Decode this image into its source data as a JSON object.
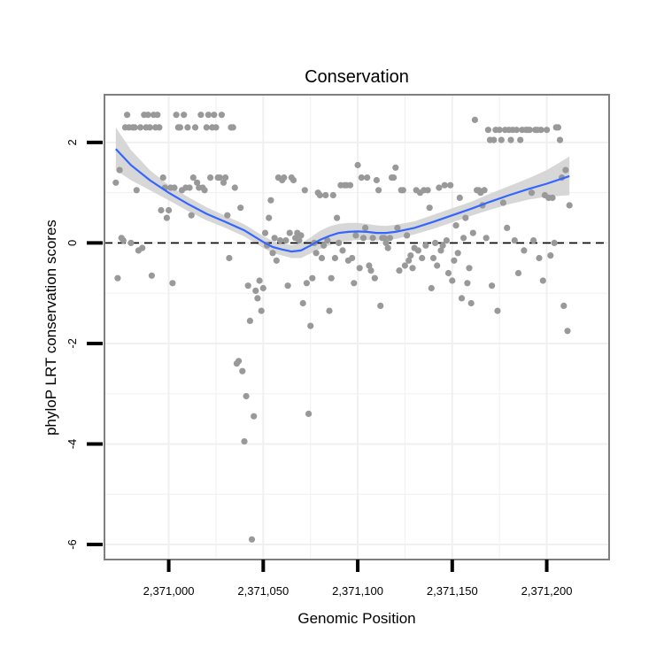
{
  "chart_data": {
    "type": "scatter",
    "title": "Conservation",
    "xlabel": "Genomic Position",
    "ylabel": "phyloP LRT conservation scores",
    "xlim": [
      2370966,
      2371233
    ],
    "ylim": [
      -6.3,
      2.95
    ],
    "x_ticks": [
      2371000,
      2371050,
      2371100,
      2371150,
      2371200
    ],
    "x_tick_labels": [
      "2,371,000",
      "2,371,050",
      "2,371,100",
      "2,371,150",
      "2,371,200"
    ],
    "y_ticks": [
      2,
      0,
      -2,
      -4,
      -6
    ],
    "y_tick_labels": [
      "2",
      "0",
      "-2",
      "-4",
      "-6"
    ],
    "reference_line": {
      "y": 0,
      "style": "dashed"
    },
    "grid": true,
    "colors": {
      "points": "#999999",
      "smooth": "#3366ff",
      "ribbon": "#d3d3d3",
      "panel_border": "#7f7f7f",
      "grid": "#f0f0f0"
    },
    "points": [
      [
        2370972,
        1.2
      ],
      [
        2370973,
        -0.7
      ],
      [
        2370974,
        1.45
      ],
      [
        2370975,
        0.1
      ],
      [
        2370976,
        0.05
      ],
      [
        2370977,
        2.3
      ],
      [
        2370978,
        2.55
      ],
      [
        2370979,
        2.3
      ],
      [
        2370980,
        0.0
      ],
      [
        2370981,
        2.3
      ],
      [
        2370982,
        2.3
      ],
      [
        2370983,
        1.05
      ],
      [
        2370984,
        -0.15
      ],
      [
        2370985,
        2.3
      ],
      [
        2370986,
        -0.1
      ],
      [
        2370987,
        2.55
      ],
      [
        2370988,
        2.3
      ],
      [
        2370989,
        2.55
      ],
      [
        2370990,
        2.3
      ],
      [
        2370991,
        -0.65
      ],
      [
        2370992,
        2.55
      ],
      [
        2370993,
        2.3
      ],
      [
        2370994,
        2.55
      ],
      [
        2370995,
        2.3
      ],
      [
        2370996,
        0.65
      ],
      [
        2370997,
        1.3
      ],
      [
        2370998,
        1.1
      ],
      [
        2370999,
        0.5
      ],
      [
        2371000,
        0.65
      ],
      [
        2371001,
        1.1
      ],
      [
        2371002,
        -0.8
      ],
      [
        2371003,
        1.1
      ],
      [
        2371004,
        2.55
      ],
      [
        2371005,
        2.3
      ],
      [
        2371006,
        2.3
      ],
      [
        2371007,
        1.05
      ],
      [
        2371008,
        2.55
      ],
      [
        2371009,
        1.1
      ],
      [
        2371010,
        2.3
      ],
      [
        2371011,
        1.1
      ],
      [
        2371012,
        0.55
      ],
      [
        2371013,
        1.3
      ],
      [
        2371014,
        2.3
      ],
      [
        2371015,
        1.2
      ],
      [
        2371016,
        1.1
      ],
      [
        2371017,
        2.55
      ],
      [
        2371018,
        1.1
      ],
      [
        2371019,
        1.05
      ],
      [
        2371020,
        2.3
      ],
      [
        2371021,
        2.55
      ],
      [
        2371022,
        1.3
      ],
      [
        2371023,
        2.3
      ],
      [
        2371024,
        2.55
      ],
      [
        2371025,
        2.3
      ],
      [
        2371026,
        1.3
      ],
      [
        2371027,
        1.3
      ],
      [
        2371028,
        2.55
      ],
      [
        2371029,
        1.2
      ],
      [
        2371030,
        1.3
      ],
      [
        2371031,
        0.55
      ],
      [
        2371032,
        -0.3
      ],
      [
        2371033,
        2.3
      ],
      [
        2371034,
        2.3
      ],
      [
        2371035,
        1.1
      ],
      [
        2371036,
        -2.4
      ],
      [
        2371037,
        -2.35
      ],
      [
        2371038,
        0.7
      ],
      [
        2371039,
        -2.55
      ],
      [
        2371040,
        -3.95
      ],
      [
        2371041,
        -3.05
      ],
      [
        2371042,
        -0.85
      ],
      [
        2371043,
        -1.55
      ],
      [
        2371044,
        -5.9
      ],
      [
        2371045,
        -3.45
      ],
      [
        2371046,
        -0.95
      ],
      [
        2371047,
        -1.1
      ],
      [
        2371048,
        -0.75
      ],
      [
        2371049,
        -1.35
      ],
      [
        2371050,
        -0.9
      ],
      [
        2371051,
        0.2
      ],
      [
        2371052,
        -0.05
      ],
      [
        2371053,
        0.5
      ],
      [
        2371054,
        0.85
      ],
      [
        2371055,
        -0.2
      ],
      [
        2371056,
        0.1
      ],
      [
        2371057,
        -0.35
      ],
      [
        2371058,
        1.3
      ],
      [
        2371059,
        0.05
      ],
      [
        2371060,
        1.25
      ],
      [
        2371061,
        1.3
      ],
      [
        2371062,
        0.05
      ],
      [
        2371063,
        -0.85
      ],
      [
        2371064,
        0.2
      ],
      [
        2371065,
        1.3
      ],
      [
        2371066,
        1.25
      ],
      [
        2371067,
        0.1
      ],
      [
        2371068,
        0.2
      ],
      [
        2371069,
        0.05
      ],
      [
        2371070,
        0.15
      ],
      [
        2371071,
        -1.2
      ],
      [
        2371072,
        1.05
      ],
      [
        2371073,
        -0.8
      ],
      [
        2371074,
        -3.4
      ],
      [
        2371075,
        -1.65
      ],
      [
        2371076,
        -0.7
      ],
      [
        2371077,
        0.0
      ],
      [
        2371078,
        -0.2
      ],
      [
        2371079,
        1.0
      ],
      [
        2371080,
        0.95
      ],
      [
        2371081,
        -0.3
      ],
      [
        2371082,
        -0.05
      ],
      [
        2371083,
        0.95
      ],
      [
        2371084,
        0.05
      ],
      [
        2371085,
        -1.35
      ],
      [
        2371086,
        -0.7
      ],
      [
        2371087,
        0.95
      ],
      [
        2371088,
        -0.3
      ],
      [
        2371089,
        0.5
      ],
      [
        2371090,
        0.0
      ],
      [
        2371091,
        1.15
      ],
      [
        2371092,
        -0.15
      ],
      [
        2371093,
        1.15
      ],
      [
        2371094,
        1.15
      ],
      [
        2371095,
        -0.35
      ],
      [
        2371096,
        1.15
      ],
      [
        2371097,
        -0.3
      ],
      [
        2371098,
        -0.8
      ],
      [
        2371099,
        0.15
      ],
      [
        2371100,
        1.55
      ],
      [
        2371101,
        -0.5
      ],
      [
        2371102,
        1.3
      ],
      [
        2371103,
        0.1
      ],
      [
        2371104,
        0.3
      ],
      [
        2371105,
        1.3
      ],
      [
        2371106,
        -0.45
      ],
      [
        2371107,
        -0.55
      ],
      [
        2371108,
        0.1
      ],
      [
        2371109,
        -0.7
      ],
      [
        2371110,
        1.25
      ],
      [
        2371111,
        1.05
      ],
      [
        2371112,
        -1.25
      ],
      [
        2371113,
        0.1
      ],
      [
        2371114,
        0.1
      ],
      [
        2371115,
        0.0
      ],
      [
        2371116,
        -0.1
      ],
      [
        2371117,
        0.1
      ],
      [
        2371118,
        1.3
      ],
      [
        2371119,
        1.3
      ],
      [
        2371120,
        1.5
      ],
      [
        2371121,
        0.3
      ],
      [
        2371122,
        -0.55
      ],
      [
        2371123,
        1.05
      ],
      [
        2371124,
        1.05
      ],
      [
        2371125,
        -0.45
      ],
      [
        2371126,
        0.15
      ],
      [
        2371127,
        -0.35
      ],
      [
        2371128,
        -0.25
      ],
      [
        2371129,
        -0.5
      ],
      [
        2371130,
        -0.1
      ],
      [
        2371131,
        1.05
      ],
      [
        2371132,
        -0.15
      ],
      [
        2371133,
        1.0
      ],
      [
        2371134,
        -0.3
      ],
      [
        2371135,
        1.05
      ],
      [
        2371136,
        -0.05
      ],
      [
        2371137,
        1.05
      ],
      [
        2371138,
        0.7
      ],
      [
        2371139,
        -0.9
      ],
      [
        2371140,
        -0.3
      ],
      [
        2371141,
        0.0
      ],
      [
        2371142,
        -0.45
      ],
      [
        2371143,
        1.1
      ],
      [
        2371144,
        -0.15
      ],
      [
        2371145,
        -0.05
      ],
      [
        2371146,
        1.15
      ],
      [
        2371147,
        0.05
      ],
      [
        2371148,
        -0.6
      ],
      [
        2371149,
        1.15
      ],
      [
        2371150,
        -0.75
      ],
      [
        2371151,
        -0.35
      ],
      [
        2371152,
        0.35
      ],
      [
        2371153,
        -0.2
      ],
      [
        2371154,
        0.9
      ],
      [
        2371155,
        -1.1
      ],
      [
        2371156,
        0.1
      ],
      [
        2371157,
        0.5
      ],
      [
        2371158,
        -0.8
      ],
      [
        2371159,
        -0.5
      ],
      [
        2371160,
        -1.2
      ],
      [
        2371161,
        0.2
      ],
      [
        2371162,
        2.45
      ],
      [
        2371163,
        1.05
      ],
      [
        2371164,
        1.05
      ],
      [
        2371165,
        1.0
      ],
      [
        2371166,
        0.75
      ],
      [
        2371167,
        1.05
      ],
      [
        2371168,
        0.1
      ],
      [
        2371169,
        2.25
      ],
      [
        2371170,
        2.05
      ],
      [
        2371171,
        -0.85
      ],
      [
        2371172,
        2.05
      ],
      [
        2371173,
        2.25
      ],
      [
        2371174,
        -1.35
      ],
      [
        2371175,
        2.25
      ],
      [
        2371176,
        2.05
      ],
      [
        2371177,
        0.8
      ],
      [
        2371178,
        2.25
      ],
      [
        2371179,
        0.3
      ],
      [
        2371180,
        2.25
      ],
      [
        2371181,
        2.05
      ],
      [
        2371182,
        2.25
      ],
      [
        2371183,
        0.05
      ],
      [
        2371184,
        2.25
      ],
      [
        2371185,
        -0.6
      ],
      [
        2371186,
        2.05
      ],
      [
        2371187,
        2.25
      ],
      [
        2371188,
        -0.15
      ],
      [
        2371189,
        2.25
      ],
      [
        2371190,
        2.25
      ],
      [
        2371191,
        2.25
      ],
      [
        2371192,
        1.0
      ],
      [
        2371193,
        0.05
      ],
      [
        2371194,
        2.25
      ],
      [
        2371195,
        2.25
      ],
      [
        2371196,
        -0.3
      ],
      [
        2371197,
        2.25
      ],
      [
        2371198,
        -0.75
      ],
      [
        2371199,
        0.95
      ],
      [
        2371200,
        2.25
      ],
      [
        2371201,
        0.9
      ],
      [
        2371202,
        -0.25
      ],
      [
        2371203,
        0.9
      ],
      [
        2371204,
        0.0
      ],
      [
        2371205,
        2.3
      ],
      [
        2371206,
        2.3
      ],
      [
        2371207,
        2.05
      ],
      [
        2371208,
        1.3
      ],
      [
        2371209,
        -1.25
      ],
      [
        2371210,
        1.45
      ],
      [
        2371211,
        -1.75
      ],
      [
        2371212,
        0.75
      ]
    ],
    "smooth": {
      "x": [
        2370972,
        2370980,
        2370990,
        2371000,
        2371010,
        2371020,
        2371030,
        2371040,
        2371050,
        2371055,
        2371060,
        2371065,
        2371070,
        2371075,
        2371080,
        2371085,
        2371090,
        2371095,
        2371100,
        2371105,
        2371110,
        2371115,
        2371120,
        2371130,
        2371140,
        2371150,
        2371160,
        2371170,
        2371180,
        2371190,
        2371200,
        2371212
      ],
      "y": [
        1.87,
        1.55,
        1.25,
        1.0,
        0.78,
        0.58,
        0.42,
        0.25,
        0.02,
        -0.08,
        -0.13,
        -0.17,
        -0.15,
        -0.05,
        0.06,
        0.14,
        0.2,
        0.22,
        0.23,
        0.22,
        0.2,
        0.2,
        0.22,
        0.3,
        0.42,
        0.55,
        0.68,
        0.82,
        0.95,
        1.07,
        1.18,
        1.33
      ],
      "upper": [
        2.3,
        1.85,
        1.45,
        1.15,
        0.92,
        0.71,
        0.54,
        0.37,
        0.14,
        0.04,
        -0.01,
        -0.04,
        -0.01,
        0.11,
        0.24,
        0.33,
        0.38,
        0.4,
        0.4,
        0.38,
        0.35,
        0.34,
        0.36,
        0.43,
        0.56,
        0.69,
        0.82,
        0.98,
        1.13,
        1.28,
        1.45,
        1.72
      ],
      "lower": [
        1.45,
        1.25,
        1.05,
        0.85,
        0.64,
        0.45,
        0.3,
        0.13,
        -0.1,
        -0.2,
        -0.25,
        -0.3,
        -0.3,
        -0.21,
        -0.12,
        -0.05,
        0.02,
        0.04,
        0.06,
        0.06,
        0.05,
        0.06,
        0.08,
        0.17,
        0.28,
        0.41,
        0.54,
        0.66,
        0.77,
        0.86,
        0.92,
        0.95
      ]
    }
  }
}
